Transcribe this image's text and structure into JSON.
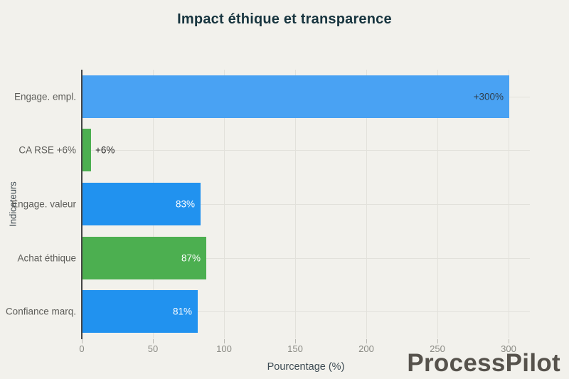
{
  "page": {
    "background": "#f2f1ec"
  },
  "watermark": {
    "text": "ProcessPilot",
    "color": "#56524c"
  },
  "chart_data": {
    "type": "bar",
    "orientation": "horizontal",
    "title": "Impact éthique et transparence",
    "xlabel": "Pourcentage (%)",
    "ylabel": "Indicateurs",
    "categories": [
      "Engage. empl.",
      "CA RSE +6%",
      "Engage. valeur",
      "Achat éthique",
      "Confiance marq."
    ],
    "values": [
      300,
      6,
      83,
      87,
      81
    ],
    "value_labels": [
      "+300%",
      "+6%",
      "83%",
      "87%",
      "81%"
    ],
    "bar_colors": [
      "#49a2f3",
      "#4caf50",
      "#2192ef",
      "#4caf50",
      "#2192ef"
    ],
    "value_label_inside": [
      true,
      false,
      true,
      true,
      true
    ],
    "value_label_colors": [
      "#2e3e4c",
      "#2a2a2a",
      "#ffffff",
      "#ffffff",
      "#ffffff"
    ],
    "xlim": [
      0,
      315
    ],
    "xticks": [
      0,
      50,
      100,
      150,
      200,
      250,
      300
    ],
    "grid": true,
    "legend": null,
    "style": {
      "grid_color": "#e2e1db",
      "axis_line_color": "#454545",
      "tick_label_color": "#8b8b85",
      "xlabel_color": "#3e4c54",
      "category_label_color": "#5d5d59",
      "title_color": "#18353f"
    }
  }
}
